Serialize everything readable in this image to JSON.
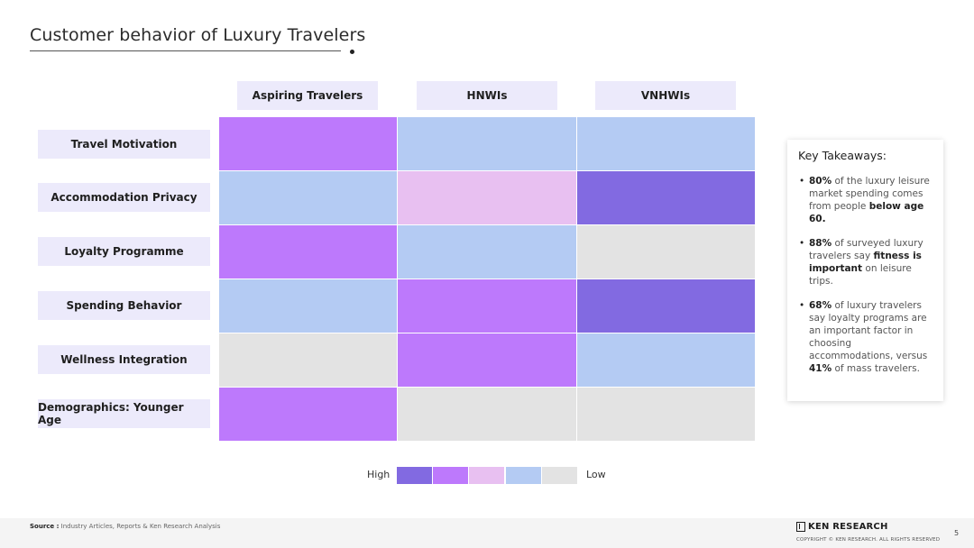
{
  "title": "Customer behavior of Luxury Travelers",
  "columns": [
    "Aspiring Travelers",
    "HNWIs",
    "VNHWIs"
  ],
  "rows": [
    {
      "label": "Travel Motivation",
      "levels": [
        2,
        4,
        4
      ]
    },
    {
      "label": "Accommodation Privacy",
      "levels": [
        4,
        3,
        1
      ]
    },
    {
      "label": "Loyalty Programme",
      "levels": [
        2,
        4,
        5
      ]
    },
    {
      "label": "Spending Behavior",
      "levels": [
        4,
        2,
        1
      ]
    },
    {
      "label": "Wellness Integration",
      "levels": [
        5,
        2,
        4
      ]
    },
    {
      "label": "Demographics: Younger Age",
      "levels": [
        2,
        5,
        5
      ]
    }
  ],
  "scale_colors": [
    "#826ae1",
    "#bd79fc",
    "#e8c0f1",
    "#b4cbf3",
    "#e3e3e3"
  ],
  "legend": {
    "high": "High",
    "low": "Low"
  },
  "takeaways": {
    "heading": "Key Takeaways:",
    "items": [
      {
        "parts": [
          [
            "b",
            "80%"
          ],
          [
            "t",
            " of the luxury leisure market spending comes from people "
          ],
          [
            "b",
            "below age 60."
          ]
        ]
      },
      {
        "parts": [
          [
            "b",
            "88%"
          ],
          [
            "t",
            " of surveyed luxury travelers say "
          ],
          [
            "b",
            "fitness is important"
          ],
          [
            "t",
            " on leisure trips."
          ]
        ]
      },
      {
        "parts": [
          [
            "b",
            "68%"
          ],
          [
            "t",
            " of luxury travelers say loyalty programs are an important factor in choosing accommodations, versus "
          ],
          [
            "b",
            "41%"
          ],
          [
            "t",
            " of mass travelers."
          ]
        ]
      }
    ]
  },
  "footer": {
    "source_label": "Source :",
    "source_text": "Industry Articles, Reports & Ken Research Analysis",
    "brand": "KEN RESEARCH",
    "copyright": "COPYRIGHT © KEN RESEARCH. ALL RIGHTS RESERVED",
    "page_number": "5"
  }
}
